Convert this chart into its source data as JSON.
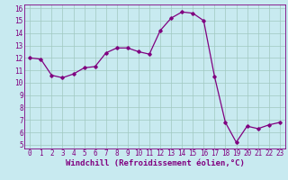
{
  "x": [
    0,
    1,
    2,
    3,
    4,
    5,
    6,
    7,
    8,
    9,
    10,
    11,
    12,
    13,
    14,
    15,
    16,
    17,
    18,
    19,
    20,
    21,
    22,
    23
  ],
  "y": [
    12.0,
    11.9,
    10.6,
    10.4,
    10.7,
    11.2,
    11.3,
    12.4,
    12.8,
    12.8,
    12.5,
    12.3,
    14.2,
    15.2,
    15.7,
    15.6,
    15.0,
    10.5,
    6.8,
    5.2,
    6.5,
    6.3,
    6.6,
    6.8
  ],
  "line_color": "#800080",
  "marker": "D",
  "marker_size": 1.8,
  "line_width": 0.9,
  "bg_color": "#c8eaf0",
  "grid_color": "#a0c8c0",
  "xlabel": "Windchill (Refroidissement éolien,°C)",
  "xlabel_fontsize": 6.5,
  "xlabel_color": "#800080",
  "ylim_min": 5,
  "ylim_max": 16,
  "yticks": [
    5,
    6,
    7,
    8,
    9,
    10,
    11,
    12,
    13,
    14,
    15,
    16
  ],
  "xticks": [
    0,
    1,
    2,
    3,
    4,
    5,
    6,
    7,
    8,
    9,
    10,
    11,
    12,
    13,
    14,
    15,
    16,
    17,
    18,
    19,
    20,
    21,
    22,
    23
  ],
  "tick_fontsize": 5.5,
  "tick_color": "#800080"
}
